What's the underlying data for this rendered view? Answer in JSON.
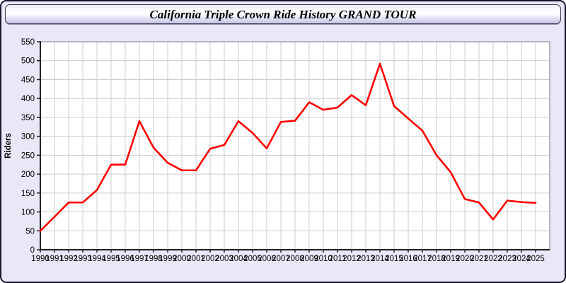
{
  "window": {
    "title": "California Triple Crown Ride History GRAND TOUR"
  },
  "chart_data": {
    "type": "line",
    "title": "California Triple Crown Ride History GRAND TOUR",
    "xlabel": "",
    "ylabel": "Riders",
    "x": [
      1990,
      1991,
      1992,
      1993,
      1994,
      1995,
      1996,
      1997,
      1998,
      1999,
      2000,
      2001,
      2002,
      2003,
      2004,
      2005,
      2006,
      2007,
      2008,
      2009,
      2010,
      2011,
      2012,
      2013,
      2014,
      2015,
      2016,
      2017,
      2018,
      2019,
      2020,
      2021,
      2022,
      2023,
      2024,
      2025
    ],
    "series": [
      {
        "name": "Riders",
        "color": "#ff0000",
        "values": [
          50,
          87,
          125,
          125,
          158,
          225,
          225,
          340,
          270,
          230,
          210,
          210,
          267,
          277,
          340,
          309,
          268,
          338,
          341,
          390,
          370,
          376,
          409,
          382,
          492,
          380,
          347,
          315,
          250,
          205,
          134,
          125,
          80,
          130,
          126,
          124
        ]
      }
    ],
    "ylim": [
      0,
      550
    ],
    "ytick_step": 50,
    "xtick_labels": [
      "1990",
      "1991",
      "1992",
      "1993",
      "1994",
      "1995",
      "1996",
      "1997",
      "1998",
      "1999",
      "2000",
      "2001",
      "2002",
      "2003",
      "2004",
      "2005",
      "2006",
      "2007",
      "2008",
      "2009",
      "2010",
      "2011",
      "2012",
      "2013",
      "2014",
      "2015",
      "2016",
      "2017",
      "2018",
      "2019",
      "2020",
      "2021",
      "2022",
      "2023",
      "2024",
      "2025"
    ],
    "grid": true,
    "legend_position": "none"
  },
  "colors": {
    "window_background": "#e8e8f7",
    "window_border": "#16162c",
    "plot_background": "#ffffff",
    "gridline": "#cccccc",
    "axis": "#222222",
    "plot_frame": "#777788",
    "series_line": "#ff0000"
  }
}
